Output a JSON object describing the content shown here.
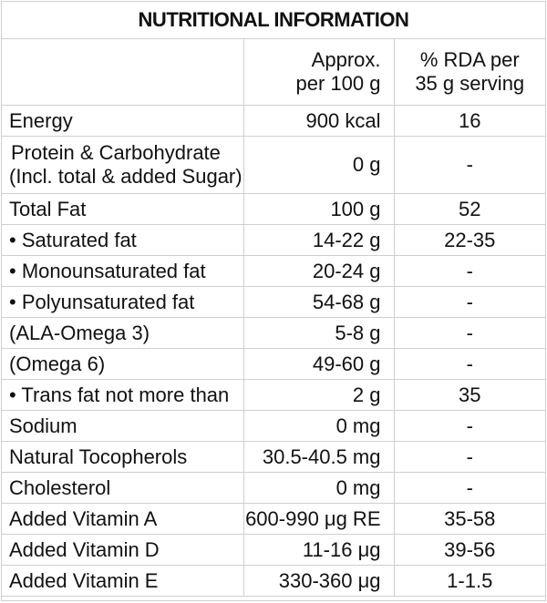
{
  "title": "NUTRITIONAL INFORMATION",
  "headers": {
    "col2_line1": "Approx.",
    "col2_line2": "per 100 g",
    "col3_line1": "% RDA per",
    "col3_line2": "35 g serving"
  },
  "rows": [
    {
      "name": "Energy",
      "amount": "900 kcal",
      "rda": "16"
    },
    {
      "name_line1": "Protein & Carbohydrate",
      "name_line2": "(Incl. total & added Sugar)",
      "amount": "0 g",
      "rda": "-"
    },
    {
      "name": "Total Fat",
      "amount": "100 g",
      "rda": "52"
    },
    {
      "name": "• Saturated fat",
      "amount": "14-22 g",
      "rda": "22-35"
    },
    {
      "name": "• Monounsaturated fat",
      "amount": "20-24 g",
      "rda": "-"
    },
    {
      "name": "• Polyunsaturated fat",
      "amount": "54-68 g",
      "rda": "-"
    },
    {
      "name": "(ALA-Omega 3)",
      "amount": "5-8 g",
      "rda": "-"
    },
    {
      "name": "(Omega 6)",
      "amount": "49-60 g",
      "rda": "-"
    },
    {
      "name": "• Trans fat not more than",
      "amount": "2 g",
      "rda": "35"
    },
    {
      "name": "Sodium",
      "amount": "0 mg",
      "rda": "-"
    },
    {
      "name": "Natural Tocopherols",
      "amount": "30.5-40.5 mg",
      "rda": "-"
    },
    {
      "name": "Cholesterol",
      "amount": "0 mg",
      "rda": "-"
    },
    {
      "name": "Added Vitamin A",
      "amount": "600-990 μg RE",
      "rda": "35-58"
    },
    {
      "name": "Added Vitamin D",
      "amount": "11-16 μg",
      "rda": "39-56"
    },
    {
      "name": "Added Vitamin E",
      "amount": "330-360 μg",
      "rda": "1-1.5"
    }
  ]
}
